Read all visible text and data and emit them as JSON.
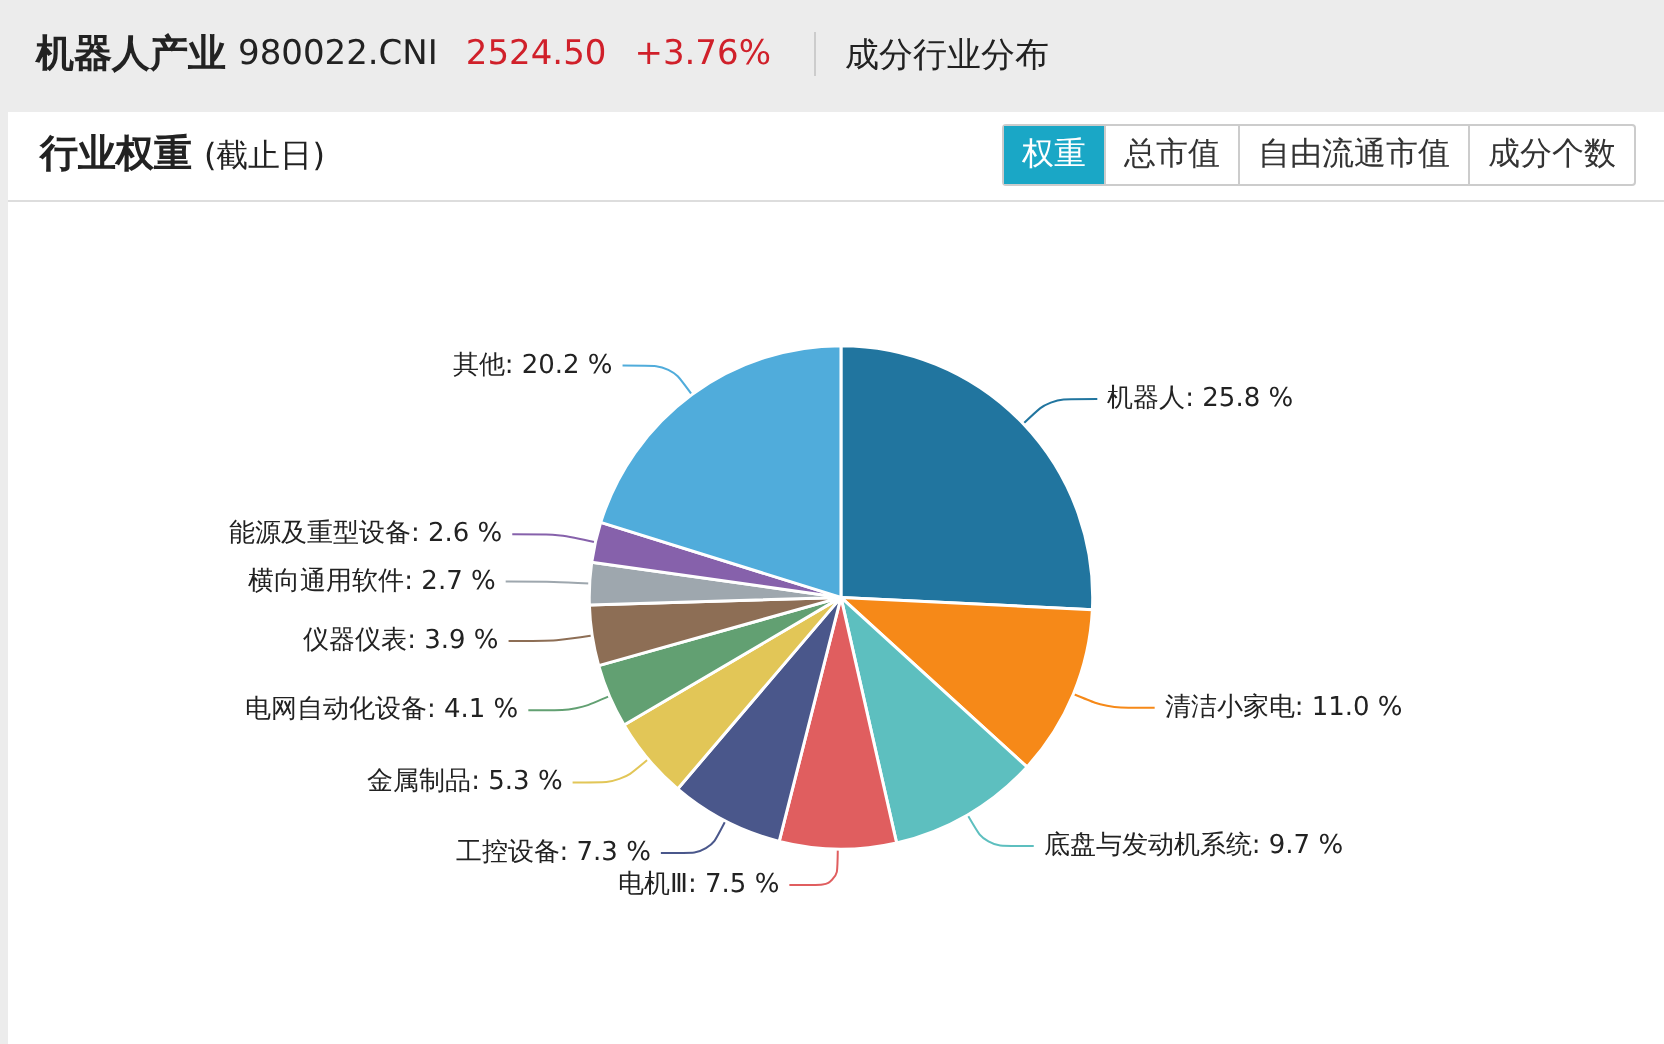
{
  "chart_data": {
    "type": "pie",
    "title": "机器人产业",
    "subtitle": "行业权重",
    "annotations": [
      "980022.CNI",
      "2524.50",
      "+3.76%",
      "成分行业分布",
      "(截止日)",
      "权重",
      "总市值",
      "自由流通市值",
      "成分个数"
    ],
    "categories": [
      "机器人",
      "清洁小家电",
      "底盘与发动机系统",
      "电机Ⅲ",
      "工控设备",
      "金属制品",
      "电网自动化设备",
      "仪器仪表",
      "横向通用软件",
      "能源及重型设备",
      "其他"
    ],
    "values": [
      25.8,
      11.0,
      9.7,
      7.5,
      7.3,
      5.3,
      4.1,
      3.9,
      2.7,
      2.6,
      20.2
    ],
    "value_labels": [
      "25.8 %",
      "11.0 %",
      "9.7 %",
      "7.5 %",
      "7.3 %",
      "5.3 %",
      "4.1 %",
      "3.9 %",
      "2.7 %",
      "2.6 %",
      "20.2 %"
    ],
    "colors": [
      "#21759f",
      "#f68918",
      "#5dbfbf",
      "#e05e5f",
      "#4a578b",
      "#e2c657",
      "#62a072",
      "#8d6e55",
      "#9ea7ae",
      "#8661ab",
      "#50acdb"
    ],
    "legend": false
  }
}
